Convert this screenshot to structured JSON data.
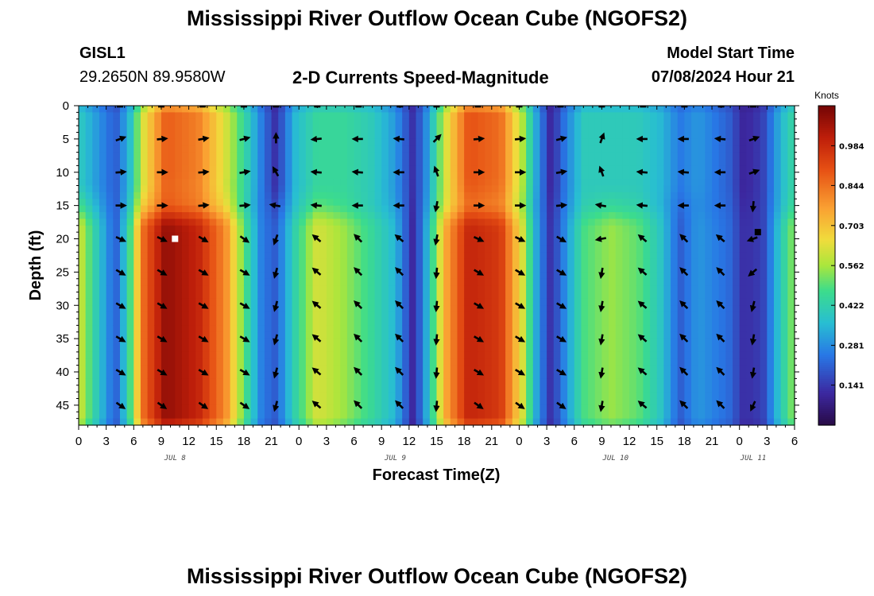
{
  "page": {
    "title_top": "Mississippi River Outflow Ocean Cube (NGOFS2)",
    "title_bottom": "Mississippi River Outflow Ocean Cube (NGOFS2)",
    "station": "GISL1",
    "location": "29.2650N  89.9580W",
    "subtitle": "2-D Currents Speed-Magnitude",
    "model_start_label": "Model Start Time",
    "model_start_value": "07/08/2024 Hour 21"
  },
  "chart_data": {
    "type": "heatmap",
    "title": "2-D Currents Speed-Magnitude",
    "xlabel": "Forecast Time(Z)",
    "ylabel": "Depth (ft)",
    "xlim": [
      0,
      78
    ],
    "ylim": [
      48,
      0
    ],
    "x_tick_labels": [
      "0",
      "3",
      "6",
      "9",
      "12",
      "15",
      "18",
      "21",
      "0",
      "3",
      "6",
      "9",
      "12",
      "15",
      "18",
      "21",
      "0",
      "3",
      "6",
      "9",
      "12",
      "15",
      "18",
      "21",
      "0",
      "3",
      "6"
    ],
    "y_ticks": [
      0,
      5,
      10,
      15,
      20,
      25,
      30,
      35,
      40,
      45
    ],
    "date_labels": [
      {
        "label": "JUL 8",
        "hour": 10.5
      },
      {
        "label": "JUL 9",
        "hour": 34.5
      },
      {
        "label": "JUL 10",
        "hour": 58.5
      },
      {
        "label": "JUL 11",
        "hour": 73.5
      }
    ],
    "colorbar": {
      "label": "Knots",
      "min": 0.0,
      "max": 1.125,
      "ticks": [
        0.141,
        0.281,
        0.422,
        0.562,
        0.703,
        0.844,
        0.984
      ],
      "tick_labels": [
        "0.141",
        "0.281",
        "0.422",
        "0.562",
        "0.703",
        "0.844",
        "0.984"
      ]
    },
    "surface_layer_depth_ft": 15,
    "speed_columns": [
      {
        "hour": 0,
        "surface": 0.4,
        "deep": 0.62
      },
      {
        "hour": 2,
        "surface": 0.3,
        "deep": 0.4
      },
      {
        "hour": 4,
        "surface": 0.2,
        "deep": 0.2
      },
      {
        "hour": 5.5,
        "surface": 0.35,
        "deep": 0.45
      },
      {
        "hour": 7,
        "surface": 0.62,
        "deep": 0.85
      },
      {
        "hour": 9.5,
        "surface": 0.88,
        "deep": 1.08
      },
      {
        "hour": 13,
        "surface": 0.82,
        "deep": 1.0
      },
      {
        "hour": 16,
        "surface": 0.62,
        "deep": 0.8
      },
      {
        "hour": 18,
        "surface": 0.45,
        "deep": 0.5
      },
      {
        "hour": 20,
        "surface": 0.25,
        "deep": 0.25
      },
      {
        "hour": 21.5,
        "surface": 0.12,
        "deep": 0.2
      },
      {
        "hour": 23.5,
        "surface": 0.35,
        "deep": 0.42
      },
      {
        "hour": 26,
        "surface": 0.45,
        "deep": 0.62
      },
      {
        "hour": 29,
        "surface": 0.45,
        "deep": 0.55
      },
      {
        "hour": 32,
        "surface": 0.4,
        "deep": 0.45
      },
      {
        "hour": 34.5,
        "surface": 0.3,
        "deep": 0.35
      },
      {
        "hour": 36.5,
        "surface": 0.12,
        "deep": 0.1
      },
      {
        "hour": 38,
        "surface": 0.3,
        "deep": 0.35
      },
      {
        "hour": 40,
        "surface": 0.62,
        "deep": 0.75
      },
      {
        "hour": 42.5,
        "surface": 0.9,
        "deep": 1.0
      },
      {
        "hour": 46,
        "surface": 0.85,
        "deep": 0.95
      },
      {
        "hour": 48.5,
        "surface": 0.55,
        "deep": 0.6
      },
      {
        "hour": 50,
        "surface": 0.3,
        "deep": 0.3
      },
      {
        "hour": 51.5,
        "surface": 0.1,
        "deep": 0.12
      },
      {
        "hour": 53,
        "surface": 0.25,
        "deep": 0.28
      },
      {
        "hour": 55,
        "surface": 0.4,
        "deep": 0.48
      },
      {
        "hour": 58,
        "surface": 0.4,
        "deep": 0.55
      },
      {
        "hour": 61,
        "surface": 0.4,
        "deep": 0.5
      },
      {
        "hour": 63.5,
        "surface": 0.35,
        "deep": 0.38
      },
      {
        "hour": 65.5,
        "surface": 0.25,
        "deep": 0.2
      },
      {
        "hour": 67.5,
        "surface": 0.3,
        "deep": 0.3
      },
      {
        "hour": 71,
        "surface": 0.2,
        "deep": 0.22
      },
      {
        "hour": 72.5,
        "surface": 0.1,
        "deep": 0.12
      },
      {
        "hour": 74.5,
        "surface": 0.15,
        "deep": 0.15
      },
      {
        "hour": 76.5,
        "surface": 0.35,
        "deep": 0.4
      },
      {
        "hour": 78,
        "surface": 0.45,
        "deep": 0.55
      }
    ],
    "vector_hours": [
      4.5,
      9,
      13.5,
      18,
      21.5,
      26,
      30.5,
      35,
      39,
      43.5,
      48,
      52.5,
      57,
      61.5,
      66,
      70,
      73.5
    ],
    "vector_depths": [
      0,
      5,
      10,
      15,
      20,
      25,
      30,
      35,
      40,
      45
    ],
    "vector_directions_deg": [
      [
        0,
        0,
        0,
        0,
        0,
        0,
        0,
        0,
        0,
        0,
        0,
        0,
        0,
        0,
        0,
        0,
        0
      ],
      [
        20,
        5,
        10,
        15,
        90,
        185,
        180,
        175,
        45,
        5,
        5,
        15,
        70,
        180,
        180,
        175,
        20
      ],
      [
        5,
        0,
        5,
        10,
        120,
        175,
        175,
        180,
        110,
        0,
        0,
        10,
        110,
        175,
        175,
        180,
        20
      ],
      [
        0,
        0,
        5,
        5,
        170,
        175,
        180,
        180,
        260,
        0,
        0,
        5,
        170,
        175,
        180,
        180,
        265
      ],
      [
        -25,
        -25,
        -30,
        -35,
        250,
        140,
        135,
        140,
        260,
        -25,
        -25,
        -30,
        190,
        140,
        135,
        140,
        200
      ],
      [
        -30,
        -30,
        -30,
        -30,
        255,
        140,
        135,
        135,
        265,
        -30,
        -30,
        -30,
        260,
        140,
        135,
        135,
        220
      ],
      [
        -30,
        -30,
        -30,
        -30,
        255,
        140,
        135,
        135,
        265,
        -30,
        -30,
        -30,
        260,
        140,
        135,
        135,
        255
      ],
      [
        -30,
        -30,
        -30,
        -30,
        255,
        140,
        135,
        135,
        265,
        -30,
        -30,
        -30,
        260,
        140,
        135,
        135,
        260
      ],
      [
        -30,
        -30,
        -30,
        -30,
        255,
        140,
        135,
        135,
        265,
        -30,
        -30,
        -30,
        260,
        140,
        135,
        135,
        260
      ],
      [
        -35,
        -35,
        -35,
        -35,
        255,
        140,
        135,
        135,
        265,
        -35,
        -35,
        -35,
        260,
        140,
        135,
        135,
        245
      ]
    ],
    "markers": [
      {
        "hour": 10.5,
        "depth": 20,
        "color": "#ffffff"
      },
      {
        "hour": 74,
        "depth": 19,
        "color": "#000000"
      }
    ]
  }
}
